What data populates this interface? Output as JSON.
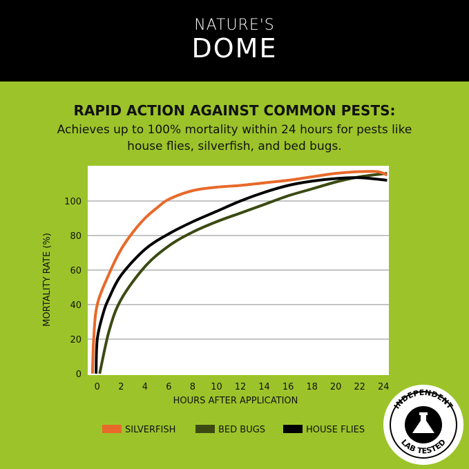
{
  "brand": {
    "line1": "NATURE'S",
    "line2": "DOME"
  },
  "heading": "RAPID ACTION AGAINST COMMON PESTS:",
  "subheading": "Achieves up to 100% mortality within 24 hours for pests like house flies, silverfish, and bed bugs.",
  "badge": {
    "top": "INDEPENDENT",
    "bottom": "LAB TESTED"
  },
  "colors": {
    "background": "#9cc42a",
    "header": "#000000",
    "silverfish": "#e8692a",
    "bed_bugs": "#3b4a12",
    "house_flies": "#000000"
  },
  "chart_data": {
    "type": "line",
    "xlabel": "HOURS AFTER APPLICATION",
    "ylabel": "MORTALITY RATE (%)",
    "xticks": [
      "0",
      "2",
      "4",
      "6",
      "8",
      "10",
      "12",
      "14",
      "16",
      "18",
      "20",
      "22",
      "24"
    ],
    "yticks": [
      "0",
      "20",
      "40",
      "60",
      "80",
      "100"
    ],
    "xlim": [
      -0.8,
      24.45
    ],
    "ylim": [
      0,
      120
    ],
    "grid": "horizontal",
    "legend": "bottom",
    "series": [
      {
        "name": "SILVERFISH",
        "color": "#e8692a",
        "points": [
          [
            -0.4,
            0
          ],
          [
            -0.3,
            20
          ],
          [
            0,
            40
          ],
          [
            1,
            58
          ],
          [
            2,
            72
          ],
          [
            3,
            82
          ],
          [
            4,
            90
          ],
          [
            5,
            96
          ],
          [
            6,
            101
          ],
          [
            8,
            106
          ],
          [
            10,
            108
          ],
          [
            12,
            109
          ],
          [
            14,
            110.5
          ],
          [
            16,
            112
          ],
          [
            18,
            114
          ],
          [
            20,
            116
          ],
          [
            22,
            117
          ],
          [
            23.5,
            117
          ],
          [
            24.3,
            115
          ]
        ]
      },
      {
        "name": "BED BUGS",
        "color": "#3b4a12",
        "points": [
          [
            0.2,
            0
          ],
          [
            1,
            25
          ],
          [
            2,
            43
          ],
          [
            4,
            62
          ],
          [
            6,
            74
          ],
          [
            8,
            82
          ],
          [
            10,
            88
          ],
          [
            12,
            93
          ],
          [
            14,
            98
          ],
          [
            16,
            103
          ],
          [
            18,
            107
          ],
          [
            20,
            111
          ],
          [
            22,
            114
          ],
          [
            24.3,
            116
          ]
        ]
      },
      {
        "name": "HOUSE FLIES",
        "color": "#000000",
        "points": [
          [
            -0.1,
            0
          ],
          [
            0,
            20
          ],
          [
            0.5,
            35
          ],
          [
            1,
            44
          ],
          [
            2,
            57
          ],
          [
            4,
            72
          ],
          [
            6,
            81
          ],
          [
            8,
            88
          ],
          [
            10,
            94
          ],
          [
            12,
            100
          ],
          [
            14,
            105
          ],
          [
            16,
            109
          ],
          [
            18,
            111.5
          ],
          [
            20,
            113
          ],
          [
            22,
            113.5
          ],
          [
            24.3,
            112
          ]
        ]
      }
    ]
  }
}
